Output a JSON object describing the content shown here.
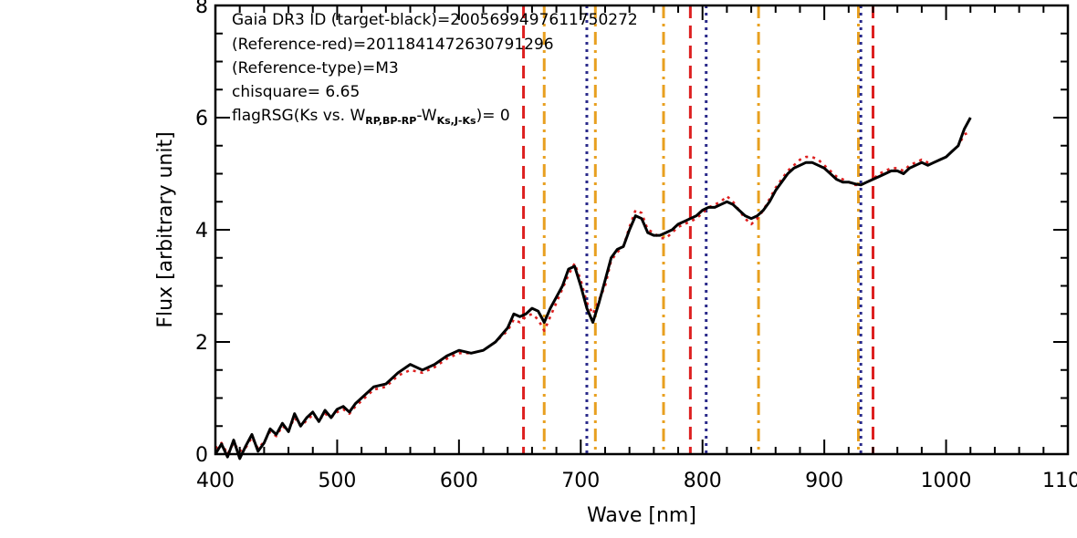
{
  "chart_data": {
    "type": "line",
    "xlabel": "Wave [nm]",
    "ylabel": "Flux [arbitrary unit]",
    "xlim": [
      400,
      1100
    ],
    "ylim": [
      0,
      8
    ],
    "x_ticks": [
      400,
      500,
      600,
      700,
      800,
      900,
      1000,
      1100
    ],
    "x_tick_labels": [
      "400",
      "500",
      "600",
      "700",
      "800",
      "900",
      "1000",
      "1100"
    ],
    "y_ticks": [
      0,
      2,
      4,
      6,
      8
    ],
    "y_tick_labels": [
      "0",
      "2",
      "4",
      "6",
      "8"
    ],
    "grid": false,
    "annotations": {
      "line1": "Gaia DR3 ID (target-black)=2005699497611750272",
      "line2": "(Reference-red)=2011841472630791296",
      "line3": "(Reference-type)=M3",
      "line4": "chisquare= 6.65",
      "line5_prefix": "flagRSG(Ks vs. W",
      "line5_sub1": "RP,BP-RP",
      "line5_mid": "-W",
      "line5_sub2": "Ks,J-Ks",
      "line5_suffix": ")= 0"
    },
    "series": [
      {
        "color": "#000000",
        "style": "solid",
        "x": [
          400,
          405,
          410,
          415,
          420,
          425,
          430,
          435,
          440,
          445,
          450,
          455,
          460,
          465,
          470,
          475,
          480,
          485,
          490,
          495,
          500,
          505,
          510,
          515,
          520,
          530,
          540,
          550,
          560,
          570,
          580,
          590,
          600,
          610,
          620,
          630,
          640,
          645,
          650,
          655,
          660,
          665,
          670,
          675,
          680,
          685,
          690,
          695,
          700,
          705,
          710,
          715,
          720,
          725,
          730,
          735,
          740,
          745,
          750,
          755,
          760,
          765,
          770,
          775,
          780,
          785,
          790,
          795,
          800,
          805,
          810,
          815,
          820,
          825,
          830,
          835,
          840,
          845,
          850,
          855,
          860,
          865,
          870,
          875,
          880,
          885,
          890,
          895,
          900,
          905,
          910,
          915,
          920,
          925,
          930,
          935,
          940,
          945,
          950,
          955,
          960,
          965,
          970,
          975,
          980,
          985,
          990,
          995,
          1000,
          1005,
          1010,
          1015,
          1020
        ],
        "values": [
          0.0,
          0.18,
          -0.05,
          0.25,
          -0.08,
          0.15,
          0.35,
          0.05,
          0.2,
          0.45,
          0.35,
          0.55,
          0.4,
          0.72,
          0.5,
          0.65,
          0.75,
          0.58,
          0.78,
          0.65,
          0.8,
          0.85,
          0.75,
          0.9,
          1.0,
          1.2,
          1.25,
          1.45,
          1.6,
          1.5,
          1.6,
          1.75,
          1.85,
          1.8,
          1.85,
          2.0,
          2.25,
          2.5,
          2.45,
          2.5,
          2.6,
          2.55,
          2.35,
          2.6,
          2.8,
          3.0,
          3.3,
          3.35,
          3.0,
          2.6,
          2.35,
          2.7,
          3.1,
          3.5,
          3.65,
          3.7,
          4.0,
          4.25,
          4.2,
          3.95,
          3.9,
          3.9,
          3.95,
          4.0,
          4.1,
          4.15,
          4.2,
          4.25,
          4.35,
          4.4,
          4.4,
          4.45,
          4.5,
          4.45,
          4.35,
          4.25,
          4.2,
          4.25,
          4.35,
          4.5,
          4.7,
          4.85,
          5.0,
          5.1,
          5.15,
          5.2,
          5.2,
          5.15,
          5.1,
          5.0,
          4.9,
          4.85,
          4.85,
          4.82,
          4.8,
          4.85,
          4.9,
          4.95,
          5.0,
          5.05,
          5.05,
          5.0,
          5.1,
          5.15,
          5.2,
          5.15,
          5.2,
          5.25,
          5.3,
          5.4,
          5.5,
          5.8,
          6.0
        ]
      },
      {
        "color": "#dd2020",
        "style": "dotted",
        "x": [
          400,
          405,
          410,
          415,
          420,
          425,
          430,
          435,
          440,
          445,
          450,
          455,
          460,
          465,
          470,
          475,
          480,
          485,
          490,
          495,
          500,
          505,
          510,
          515,
          520,
          530,
          540,
          550,
          560,
          570,
          580,
          590,
          600,
          610,
          620,
          630,
          640,
          645,
          650,
          655,
          660,
          665,
          670,
          675,
          680,
          685,
          690,
          695,
          700,
          705,
          710,
          715,
          720,
          725,
          730,
          735,
          740,
          745,
          750,
          755,
          760,
          765,
          770,
          775,
          780,
          785,
          790,
          795,
          800,
          805,
          810,
          815,
          820,
          825,
          830,
          835,
          840,
          845,
          850,
          855,
          860,
          865,
          870,
          875,
          880,
          885,
          890,
          895,
          900,
          905,
          910,
          915,
          920,
          925,
          930,
          935,
          940,
          945,
          950,
          955,
          960,
          965,
          970,
          975,
          980,
          985,
          990,
          995,
          1000,
          1005,
          1010,
          1015,
          1020
        ],
        "values": [
          0.1,
          0.2,
          0.0,
          0.2,
          0.05,
          0.12,
          0.3,
          0.1,
          0.22,
          0.4,
          0.32,
          0.5,
          0.42,
          0.65,
          0.5,
          0.6,
          0.7,
          0.6,
          0.72,
          0.65,
          0.75,
          0.8,
          0.72,
          0.85,
          0.95,
          1.15,
          1.2,
          1.4,
          1.5,
          1.45,
          1.55,
          1.7,
          1.8,
          1.8,
          1.85,
          2.0,
          2.2,
          2.4,
          2.35,
          2.45,
          2.5,
          2.4,
          2.2,
          2.45,
          2.7,
          2.95,
          3.2,
          3.4,
          3.1,
          2.7,
          2.5,
          2.75,
          3.0,
          3.45,
          3.6,
          3.7,
          4.05,
          4.35,
          4.3,
          4.0,
          3.95,
          3.85,
          3.85,
          3.95,
          4.05,
          4.1,
          4.15,
          4.2,
          4.3,
          4.4,
          4.45,
          4.5,
          4.6,
          4.5,
          4.35,
          4.2,
          4.1,
          4.2,
          4.35,
          4.55,
          4.75,
          4.9,
          5.05,
          5.15,
          5.25,
          5.3,
          5.3,
          5.25,
          5.15,
          5.05,
          4.95,
          4.9,
          4.85,
          4.8,
          4.8,
          4.85,
          4.9,
          5.0,
          5.05,
          5.1,
          5.1,
          5.05,
          5.15,
          5.2,
          5.25,
          5.2,
          5.2,
          5.25,
          5.3,
          5.4,
          5.5,
          5.7,
          5.75
        ]
      }
    ],
    "vlines": [
      {
        "x": 653,
        "color": "#dd2020",
        "style": "dashed"
      },
      {
        "x": 790,
        "color": "#dd2020",
        "style": "dashed"
      },
      {
        "x": 940,
        "color": "#dd2020",
        "style": "dashed"
      },
      {
        "x": 670,
        "color": "#e8a020",
        "style": "dashdot"
      },
      {
        "x": 712,
        "color": "#e8a020",
        "style": "dashdot"
      },
      {
        "x": 768,
        "color": "#e8a020",
        "style": "dashdot"
      },
      {
        "x": 846,
        "color": "#e8a020",
        "style": "dashdot"
      },
      {
        "x": 928,
        "color": "#e8a020",
        "style": "dashdot"
      },
      {
        "x": 705,
        "color": "#2a2a8a",
        "style": "dotted"
      },
      {
        "x": 803,
        "color": "#2a2a8a",
        "style": "dotted"
      },
      {
        "x": 930,
        "color": "#2a2a8a",
        "style": "dotted"
      }
    ]
  }
}
